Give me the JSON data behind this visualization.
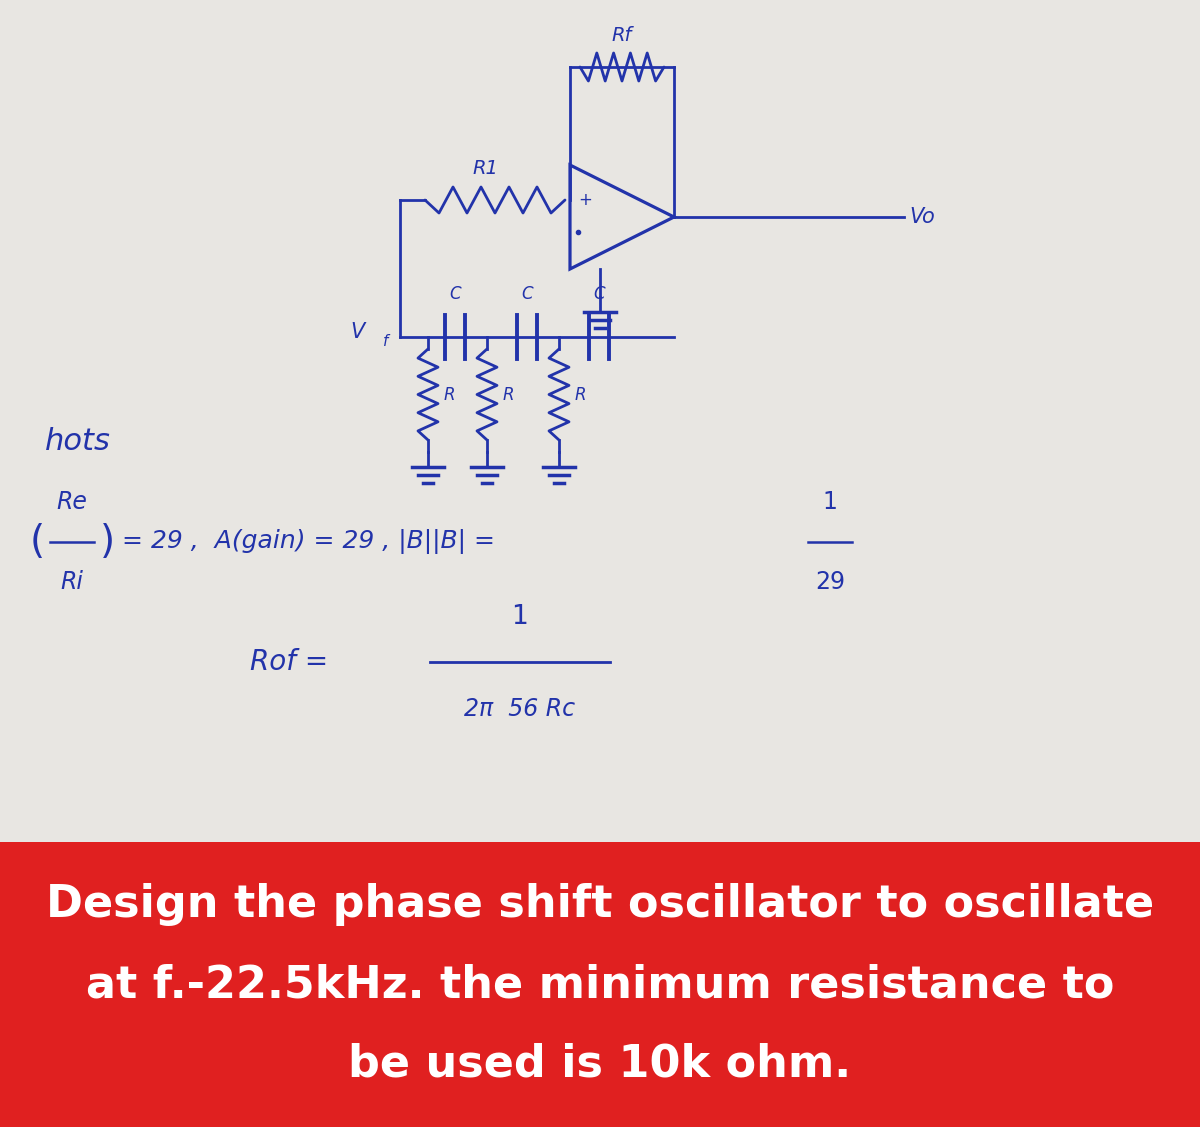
{
  "bg_color": "#e8e6e2",
  "banner_color": "#e02020",
  "banner_text_line1": "Design the phase shift oscillator to oscillate",
  "banner_text_line2": "at f.-22.5kHz. the minimum resistance to",
  "banner_text_line3": "be used is 10k ohm.",
  "banner_text_color": "#ffffff",
  "banner_fontsize": 32,
  "ink_color": "#2233aa",
  "notes_label": "hots",
  "figw": 12.0,
  "figh": 11.27
}
